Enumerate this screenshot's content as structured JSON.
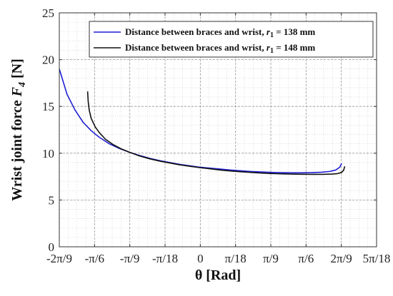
{
  "chart_data": {
    "type": "line",
    "xlabel": "θ [Rad]",
    "ylabel": {
      "main": "Wrist joint force ",
      "var": "F",
      "sub": "4",
      "unit": " [N]"
    },
    "xlim": [
      -0.698132,
      0.872665
    ],
    "ylim": [
      0,
      25
    ],
    "x_ticks": [
      {
        "value": -0.698132,
        "label": "-2π/9"
      },
      {
        "value": -0.523599,
        "label": "-π/6"
      },
      {
        "value": -0.349066,
        "label": "-π/9"
      },
      {
        "value": -0.174533,
        "label": "-π/18"
      },
      {
        "value": 0,
        "label": "0"
      },
      {
        "value": 0.174533,
        "label": "π/18"
      },
      {
        "value": 0.349066,
        "label": "π/9"
      },
      {
        "value": 0.523599,
        "label": "π/6"
      },
      {
        "value": 0.698132,
        "label": "2π/9"
      },
      {
        "value": 0.872665,
        "label": "5π/18"
      }
    ],
    "y_ticks": [
      {
        "value": 0,
        "label": "0"
      },
      {
        "value": 5,
        "label": "5"
      },
      {
        "value": 10,
        "label": "10"
      },
      {
        "value": 15,
        "label": "15"
      },
      {
        "value": 20,
        "label": "20"
      },
      {
        "value": 25,
        "label": "25"
      }
    ],
    "grid": true,
    "legend_position": "top-right",
    "series": [
      {
        "name": {
          "prefix": "Distance between braces and wrist, ",
          "var": "r",
          "sub": "1",
          "suffix": " = 138 mm"
        },
        "color": "#1f1fd6",
        "x": [
          -0.698,
          -0.66,
          -0.62,
          -0.58,
          -0.54,
          -0.5,
          -0.45,
          -0.4,
          -0.35,
          -0.3,
          -0.25,
          -0.2,
          -0.15,
          -0.1,
          -0.05,
          0.0,
          0.05,
          0.1,
          0.15,
          0.2,
          0.25,
          0.3,
          0.35,
          0.4,
          0.45,
          0.5,
          0.55,
          0.6,
          0.64,
          0.67,
          0.69,
          0.7
        ],
        "y": [
          19.0,
          16.3,
          14.6,
          13.3,
          12.4,
          11.7,
          11.0,
          10.5,
          10.1,
          9.75,
          9.45,
          9.2,
          9.0,
          8.8,
          8.65,
          8.5,
          8.4,
          8.3,
          8.2,
          8.12,
          8.05,
          8.0,
          7.95,
          7.92,
          7.9,
          7.9,
          7.92,
          7.97,
          8.05,
          8.2,
          8.5,
          8.9
        ]
      },
      {
        "name": {
          "prefix": "Distance between braces and wrist, ",
          "var": "r",
          "sub": "1",
          "suffix": " = 148 mm"
        },
        "color": "#111111",
        "x": [
          -0.558,
          -0.555,
          -0.55,
          -0.54,
          -0.52,
          -0.5,
          -0.47,
          -0.43,
          -0.39,
          -0.35,
          -0.3,
          -0.25,
          -0.2,
          -0.15,
          -0.1,
          -0.05,
          0.0,
          0.05,
          0.1,
          0.15,
          0.2,
          0.25,
          0.3,
          0.35,
          0.4,
          0.45,
          0.5,
          0.55,
          0.6,
          0.65,
          0.68,
          0.7,
          0.71,
          0.715
        ],
        "y": [
          16.6,
          15.5,
          14.6,
          13.7,
          12.8,
          12.2,
          11.5,
          10.9,
          10.45,
          10.1,
          9.7,
          9.4,
          9.15,
          8.95,
          8.75,
          8.6,
          8.45,
          8.33,
          8.2,
          8.1,
          8.02,
          7.95,
          7.88,
          7.83,
          7.8,
          7.77,
          7.75,
          7.74,
          7.74,
          7.77,
          7.82,
          7.95,
          8.2,
          8.6
        ]
      }
    ]
  }
}
